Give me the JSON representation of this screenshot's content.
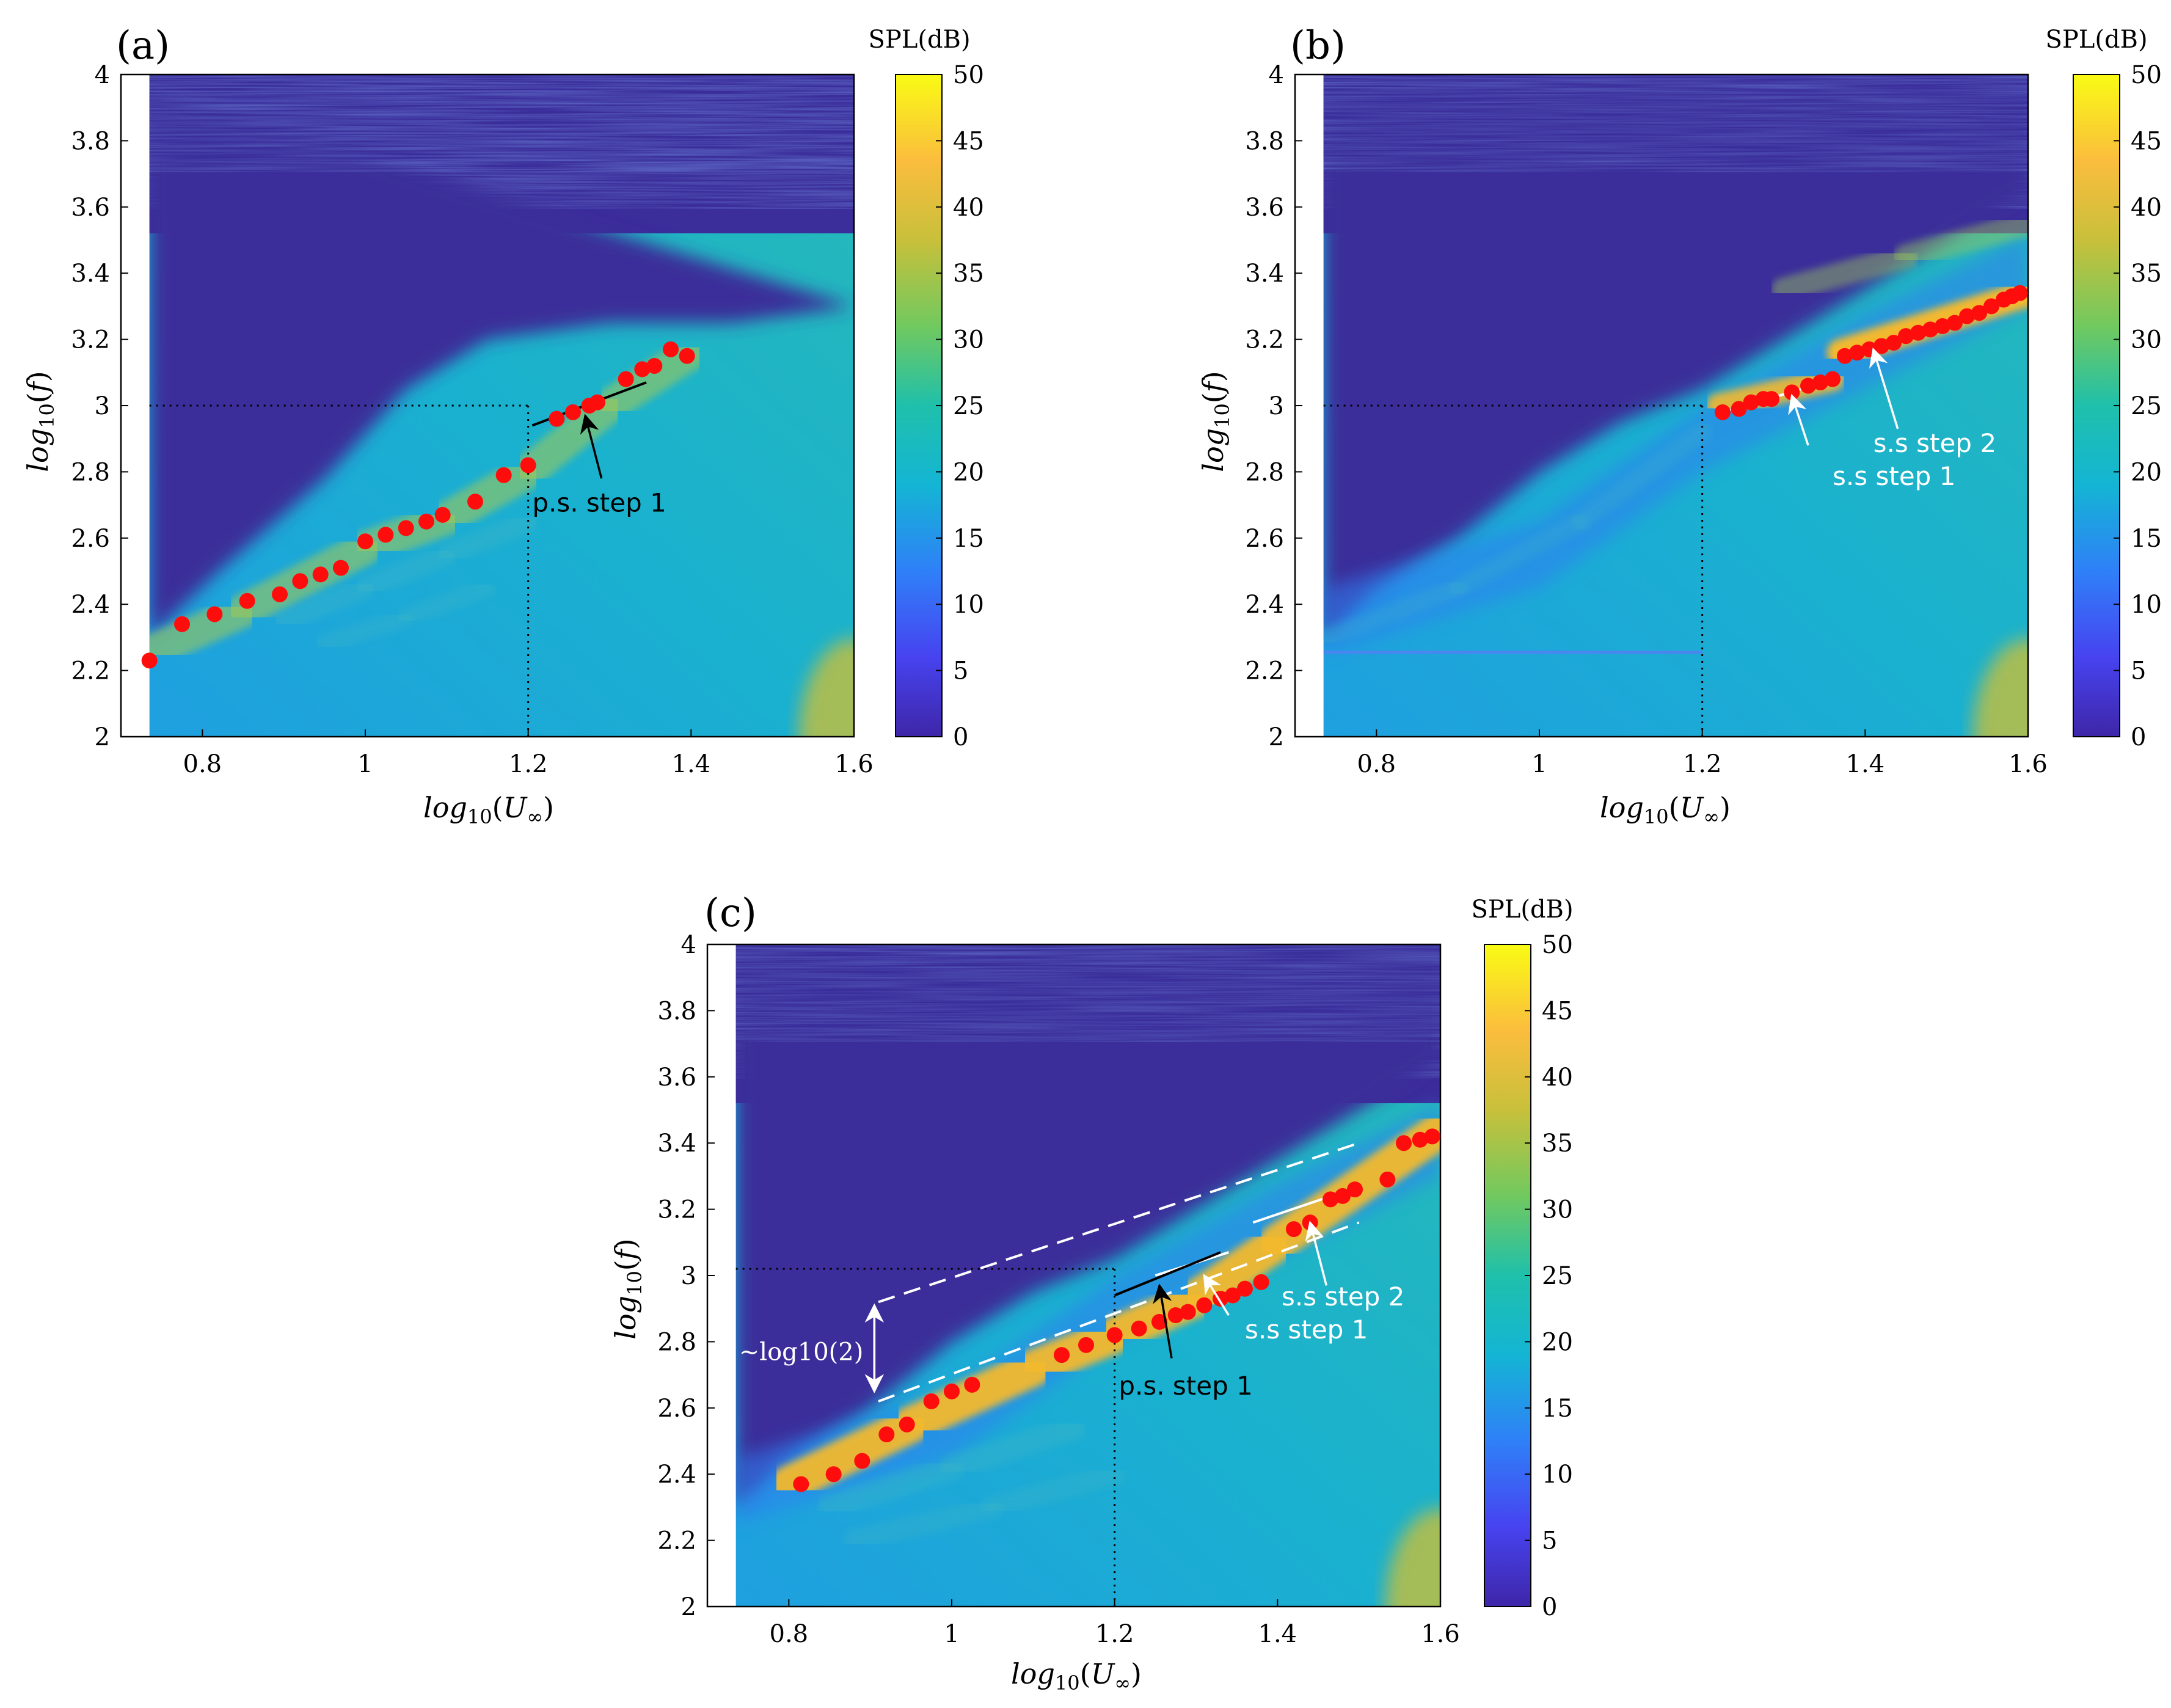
{
  "colors": {
    "background_low": "#3b2d9a",
    "colormap": [
      "#3e26a8",
      "#4743f0",
      "#2f80f8",
      "#14b5d4",
      "#1fc0ab",
      "#71c95f",
      "#c8c03b",
      "#fbbd3d",
      "#f9fb14"
    ],
    "marker": "#ff0d0d",
    "annot_white": "#ffffff",
    "annot_black": "#000000"
  },
  "chart_data": [
    {
      "panel": "(a)",
      "type": "heatmap",
      "xlabel": "log10(U∞)",
      "ylabel": "log10(f)",
      "xlim": [
        0.7,
        1.6
      ],
      "ylim": [
        2,
        4
      ],
      "xticks": [
        "0.8",
        "1",
        "1.2",
        "1.4",
        "1.6"
      ],
      "yticks": [
        "2",
        "2.2",
        "2.4",
        "2.6",
        "2.8",
        "3",
        "3.2",
        "3.4",
        "3.6",
        "3.8",
        "4"
      ],
      "colorbar": {
        "title": "SPL(dB)",
        "range": [
          0,
          50
        ],
        "ticks": [
          "0",
          "5",
          "10",
          "15",
          "20",
          "25",
          "30",
          "35",
          "40",
          "45",
          "50"
        ]
      },
      "data_start_x": 0.735,
      "dotted_crossover": {
        "x": 1.2,
        "y": 3.0
      },
      "peaks": [
        {
          "x": 0.735,
          "y": 2.23
        },
        {
          "x": 0.775,
          "y": 2.34
        },
        {
          "x": 0.815,
          "y": 2.37
        },
        {
          "x": 0.855,
          "y": 2.41
        },
        {
          "x": 0.895,
          "y": 2.43
        },
        {
          "x": 0.92,
          "y": 2.47
        },
        {
          "x": 0.945,
          "y": 2.49
        },
        {
          "x": 0.97,
          "y": 2.51
        },
        {
          "x": 1.0,
          "y": 2.59
        },
        {
          "x": 1.025,
          "y": 2.61
        },
        {
          "x": 1.05,
          "y": 2.63
        },
        {
          "x": 1.075,
          "y": 2.65
        },
        {
          "x": 1.095,
          "y": 2.67
        },
        {
          "x": 1.135,
          "y": 2.71
        },
        {
          "x": 1.17,
          "y": 2.79
        },
        {
          "x": 1.2,
          "y": 2.82
        },
        {
          "x": 1.235,
          "y": 2.96
        },
        {
          "x": 1.255,
          "y": 2.98
        },
        {
          "x": 1.275,
          "y": 3.0
        },
        {
          "x": 1.285,
          "y": 3.01
        },
        {
          "x": 1.32,
          "y": 3.08
        },
        {
          "x": 1.34,
          "y": 3.11
        },
        {
          "x": 1.355,
          "y": 3.12
        },
        {
          "x": 1.375,
          "y": 3.17
        },
        {
          "x": 1.395,
          "y": 3.15
        }
      ],
      "lines": [
        {
          "color": "black",
          "dash": false,
          "x1": 1.205,
          "y1": 2.94,
          "x2": 1.345,
          "y2": 3.07
        }
      ],
      "annotations": [
        {
          "text": "p.s. step 1",
          "x": 1.205,
          "y": 2.68,
          "color": "black",
          "arrow_from": [
            1.29,
            2.78
          ],
          "arrow_to": [
            1.27,
            2.97
          ]
        }
      ],
      "ridges": [
        {
          "x": [
            0.74,
            0.85,
            1.0,
            1.1,
            1.2,
            1.3,
            1.4
          ],
          "y": [
            2.26,
            2.38,
            2.57,
            2.66,
            2.8,
            3.0,
            3.16
          ],
          "w": 0.055,
          "h": 0.6
        },
        {
          "x": [
            0.9,
            1.0,
            1.1,
            1.2
          ],
          "y": [
            2.35,
            2.45,
            2.55,
            2.65
          ],
          "w": 0.035,
          "h": 0.35
        },
        {
          "x": [
            0.95,
            1.05,
            1.15
          ],
          "y": [
            2.28,
            2.36,
            2.45
          ],
          "w": 0.03,
          "h": 0.3
        }
      ]
    },
    {
      "panel": "(b)",
      "type": "heatmap",
      "xlabel": "log10(U∞)",
      "ylabel": "log10(f)",
      "xlim": [
        0.7,
        1.6
      ],
      "ylim": [
        2,
        4
      ],
      "xticks": [
        "0.8",
        "1",
        "1.2",
        "1.4",
        "1.6"
      ],
      "yticks": [
        "2",
        "2.2",
        "2.4",
        "2.6",
        "2.8",
        "3",
        "3.2",
        "3.4",
        "3.6",
        "3.8",
        "4"
      ],
      "colorbar": {
        "title": "SPL(dB)",
        "range": [
          0,
          50
        ],
        "ticks": [
          "0",
          "5",
          "10",
          "15",
          "20",
          "25",
          "30",
          "35",
          "40",
          "45",
          "50"
        ]
      },
      "data_start_x": 0.735,
      "dotted_crossover": {
        "x": 1.2,
        "y": 3.0
      },
      "peaks": [
        {
          "x": 1.225,
          "y": 2.98
        },
        {
          "x": 1.245,
          "y": 2.99
        },
        {
          "x": 1.26,
          "y": 3.01
        },
        {
          "x": 1.275,
          "y": 3.02
        },
        {
          "x": 1.285,
          "y": 3.02
        },
        {
          "x": 1.31,
          "y": 3.04
        },
        {
          "x": 1.33,
          "y": 3.06
        },
        {
          "x": 1.345,
          "y": 3.07
        },
        {
          "x": 1.36,
          "y": 3.08
        },
        {
          "x": 1.375,
          "y": 3.15
        },
        {
          "x": 1.39,
          "y": 3.16
        },
        {
          "x": 1.405,
          "y": 3.17
        },
        {
          "x": 1.42,
          "y": 3.18
        },
        {
          "x": 1.435,
          "y": 3.19
        },
        {
          "x": 1.45,
          "y": 3.21
        },
        {
          "x": 1.465,
          "y": 3.22
        },
        {
          "x": 1.48,
          "y": 3.23
        },
        {
          "x": 1.495,
          "y": 3.24
        },
        {
          "x": 1.51,
          "y": 3.25
        },
        {
          "x": 1.525,
          "y": 3.27
        },
        {
          "x": 1.54,
          "y": 3.28
        },
        {
          "x": 1.555,
          "y": 3.3
        },
        {
          "x": 1.57,
          "y": 3.32
        },
        {
          "x": 1.58,
          "y": 3.33
        },
        {
          "x": 1.59,
          "y": 3.34
        }
      ],
      "lines": [
        {
          "color": "white",
          "dash": false,
          "x1": 1.225,
          "y1": 2.98,
          "x2": 1.35,
          "y2": 3.07
        },
        {
          "color": "white",
          "dash": false,
          "x1": 1.37,
          "y1": 3.15,
          "x2": 1.5,
          "y2": 3.24
        }
      ],
      "annotations": [
        {
          "text": "s.s step 2",
          "x": 1.41,
          "y": 2.86,
          "color": "white",
          "arrow_from": [
            1.44,
            2.93
          ],
          "arrow_to": [
            1.41,
            3.17
          ]
        },
        {
          "text": "s.s step 1",
          "x": 1.36,
          "y": 2.76,
          "color": "white",
          "arrow_from": [
            1.33,
            2.88
          ],
          "arrow_to": [
            1.31,
            3.03
          ]
        }
      ],
      "ridges": [
        {
          "x": [
            0.74,
            0.9,
            1.05,
            1.2
          ],
          "y": [
            2.3,
            2.45,
            2.65,
            2.92
          ],
          "w": 0.03,
          "h": 0.25
        },
        {
          "x": [
            1.22,
            1.36
          ],
          "y": [
            3.0,
            3.08
          ],
          "w": 0.04,
          "h": 0.9
        },
        {
          "x": [
            1.37,
            1.6
          ],
          "y": [
            3.16,
            3.34
          ],
          "w": 0.045,
          "h": 1.0
        },
        {
          "x": [
            1.3,
            1.45,
            1.6
          ],
          "y": [
            3.35,
            3.45,
            3.55
          ],
          "w": 0.04,
          "h": 0.45
        }
      ],
      "hline": {
        "y": 2.255,
        "x1": 0.735,
        "x2": 1.2
      }
    },
    {
      "panel": "(c)",
      "type": "heatmap",
      "xlabel": "log10(U∞)",
      "ylabel": "log10(f)",
      "xlim": [
        0.7,
        1.6
      ],
      "ylim": [
        2,
        4
      ],
      "xticks": [
        "0.8",
        "1",
        "1.2",
        "1.4",
        "1.6"
      ],
      "yticks": [
        "2",
        "2.2",
        "2.4",
        "2.6",
        "2.8",
        "3",
        "3.2",
        "3.4",
        "3.6",
        "3.8",
        "4"
      ],
      "colorbar": {
        "title": "SPL(dB)",
        "range": [
          0,
          50
        ],
        "ticks": [
          "0",
          "5",
          "10",
          "15",
          "20",
          "25",
          "30",
          "35",
          "40",
          "45",
          "50"
        ]
      },
      "data_start_x": 0.735,
      "dotted_crossover": {
        "x": 1.2,
        "y": 3.02
      },
      "peaks": [
        {
          "x": 0.815,
          "y": 2.37
        },
        {
          "x": 0.855,
          "y": 2.4
        },
        {
          "x": 0.89,
          "y": 2.44
        },
        {
          "x": 0.92,
          "y": 2.52
        },
        {
          "x": 0.945,
          "y": 2.55
        },
        {
          "x": 0.975,
          "y": 2.62
        },
        {
          "x": 1.0,
          "y": 2.65
        },
        {
          "x": 1.025,
          "y": 2.67
        },
        {
          "x": 1.135,
          "y": 2.76
        },
        {
          "x": 1.165,
          "y": 2.79
        },
        {
          "x": 1.2,
          "y": 2.82
        },
        {
          "x": 1.23,
          "y": 2.84
        },
        {
          "x": 1.255,
          "y": 2.86
        },
        {
          "x": 1.275,
          "y": 2.88
        },
        {
          "x": 1.29,
          "y": 2.89
        },
        {
          "x": 1.31,
          "y": 2.91
        },
        {
          "x": 1.33,
          "y": 2.93
        },
        {
          "x": 1.345,
          "y": 2.94
        },
        {
          "x": 1.36,
          "y": 2.96
        },
        {
          "x": 1.38,
          "y": 2.98
        },
        {
          "x": 1.42,
          "y": 3.14
        },
        {
          "x": 1.44,
          "y": 3.16
        },
        {
          "x": 1.465,
          "y": 3.23
        },
        {
          "x": 1.48,
          "y": 3.24
        },
        {
          "x": 1.495,
          "y": 3.26
        },
        {
          "x": 1.535,
          "y": 3.29
        },
        {
          "x": 1.555,
          "y": 3.4
        },
        {
          "x": 1.575,
          "y": 3.41
        },
        {
          "x": 1.59,
          "y": 3.42
        }
      ],
      "lines": [
        {
          "color": "white",
          "dash": true,
          "x1": 0.91,
          "y1": 2.62,
          "x2": 1.5,
          "y2": 3.16
        },
        {
          "color": "white",
          "dash": true,
          "x1": 0.91,
          "y1": 2.92,
          "x2": 1.5,
          "y2": 3.4
        },
        {
          "color": "white",
          "dash": false,
          "x1": 1.25,
          "y1": 3.0,
          "x2": 1.34,
          "y2": 3.07
        },
        {
          "color": "black",
          "dash": false,
          "x1": 1.2,
          "y1": 2.94,
          "x2": 1.33,
          "y2": 3.07
        },
        {
          "color": "white",
          "dash": false,
          "x1": 1.37,
          "y1": 3.16,
          "x2": 1.49,
          "y2": 3.26
        }
      ],
      "annotations": [
        {
          "text": "s.s step 2",
          "x": 1.405,
          "y": 2.91,
          "color": "white",
          "arrow_from": [
            1.46,
            2.97
          ],
          "arrow_to": [
            1.44,
            3.16
          ]
        },
        {
          "text": "s.s step 1",
          "x": 1.36,
          "y": 2.81,
          "color": "white",
          "arrow_from": [
            1.34,
            2.88
          ],
          "arrow_to": [
            1.31,
            3.0
          ]
        },
        {
          "text": "p.s. step 1",
          "x": 1.205,
          "y": 2.64,
          "color": "black",
          "arrow_from": [
            1.27,
            2.75
          ],
          "arrow_to": [
            1.255,
            2.97
          ]
        }
      ],
      "log2_annotation": {
        "text": "∼log10(2)",
        "x": 0.83,
        "y": 2.77,
        "arrow_x": 0.905,
        "y_low": 2.65,
        "y_high": 2.91
      },
      "ridges": [
        {
          "x": [
            0.8,
            0.95,
            1.1,
            1.2,
            1.3,
            1.4,
            1.6
          ],
          "y": [
            2.37,
            2.55,
            2.72,
            2.82,
            2.93,
            3.1,
            3.44
          ],
          "w": 0.06,
          "h": 0.95
        },
        {
          "x": [
            0.85,
            1.0,
            1.15
          ],
          "y": [
            2.3,
            2.42,
            2.54
          ],
          "w": 0.04,
          "h": 0.35
        },
        {
          "x": [
            0.88,
            1.05,
            1.2
          ],
          "y": [
            2.2,
            2.3,
            2.4
          ],
          "w": 0.035,
          "h": 0.3
        }
      ]
    }
  ]
}
